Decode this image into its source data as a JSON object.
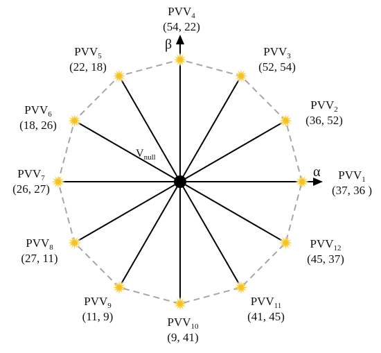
{
  "diagram": {
    "axes": {
      "alpha": "α",
      "beta": "β"
    },
    "center_label": {
      "main": "V",
      "sub": "null"
    },
    "colors": {
      "spoke": "#000000",
      "polygon": "#a6a6a6",
      "star": "#f7c21e",
      "star_glow": "#fde79a",
      "center": "#000000"
    },
    "vectors": [
      {
        "id": 1,
        "name": "PVV",
        "sub": "1",
        "coords": "(37, 36 )"
      },
      {
        "id": 2,
        "name": "PVV",
        "sub": "2",
        "coords": "(36, 52)"
      },
      {
        "id": 3,
        "name": "PVV",
        "sub": "3",
        "coords": "(52, 54)"
      },
      {
        "id": 4,
        "name": "PVV",
        "sub": "4",
        "coords": "(54, 22)"
      },
      {
        "id": 5,
        "name": "PVV",
        "sub": "5",
        "coords": "(22, 18)"
      },
      {
        "id": 6,
        "name": "PVV",
        "sub": "6",
        "coords": "(18, 26)"
      },
      {
        "id": 7,
        "name": "PVV",
        "sub": "7",
        "coords": "(26, 27)"
      },
      {
        "id": 8,
        "name": "PVV",
        "sub": "8",
        "coords": "(27, 11)"
      },
      {
        "id": 9,
        "name": "PVV",
        "sub": "9",
        "coords": "(11, 9)"
      },
      {
        "id": 10,
        "name": "PVV",
        "sub": "10",
        "coords": "(9, 41)"
      },
      {
        "id": 11,
        "name": "PVV",
        "sub": "11",
        "coords": "(41, 45)"
      },
      {
        "id": 12,
        "name": "PVV",
        "sub": "12",
        "coords": "(45, 37)"
      }
    ]
  }
}
